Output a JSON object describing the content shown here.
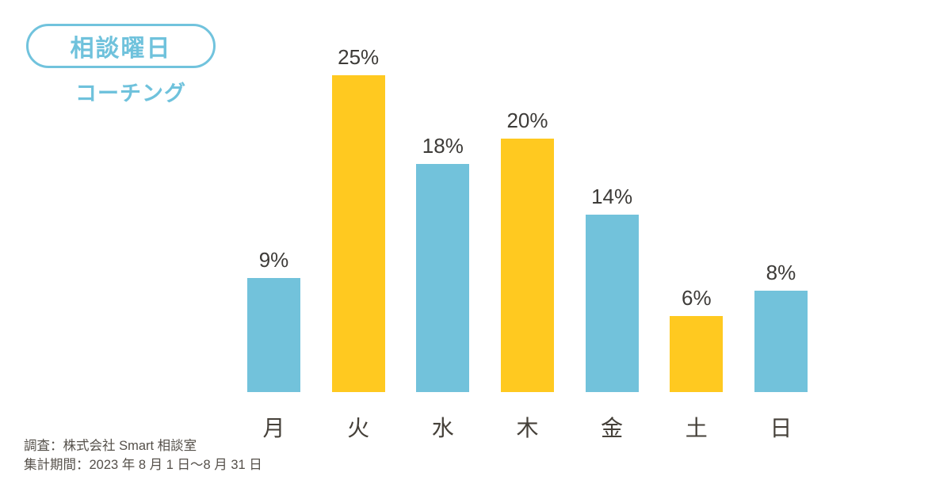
{
  "page": {
    "background_color": "#ffffff",
    "accent_blue": "#6FC2DC",
    "text_dark": "#3d3b38",
    "text_footer": "#55504a"
  },
  "header": {
    "badge_label": "相談曜日",
    "subtitle": "コーチング",
    "badge_border_color": "#71C3DD",
    "badge_text_color": "#6FC2DC"
  },
  "chart_data": {
    "type": "bar",
    "categories": [
      "月",
      "火",
      "水",
      "木",
      "金",
      "土",
      "日"
    ],
    "values": [
      9,
      25,
      18,
      20,
      14,
      6,
      8
    ],
    "value_labels": [
      "9%",
      "25%",
      "18%",
      "20%",
      "14%",
      "6%",
      "8%"
    ],
    "bar_colors": [
      "#72C2DB",
      "#FFC920",
      "#72C2DB",
      "#FFC920",
      "#72C2DB",
      "#FFC920",
      "#72C2DB"
    ],
    "title": "相談曜日",
    "subtitle": "コーチング",
    "xlabel": "",
    "ylabel": "",
    "ylim": [
      0,
      25
    ],
    "grid": false,
    "legend": "none",
    "value_label_position": "above-bar",
    "unit": "percent"
  },
  "footer": {
    "line1": "調査：株式会社 Smart 相談室",
    "line2": "集計期間：2023 年 8 月 1 日〜8 月 31 日"
  }
}
